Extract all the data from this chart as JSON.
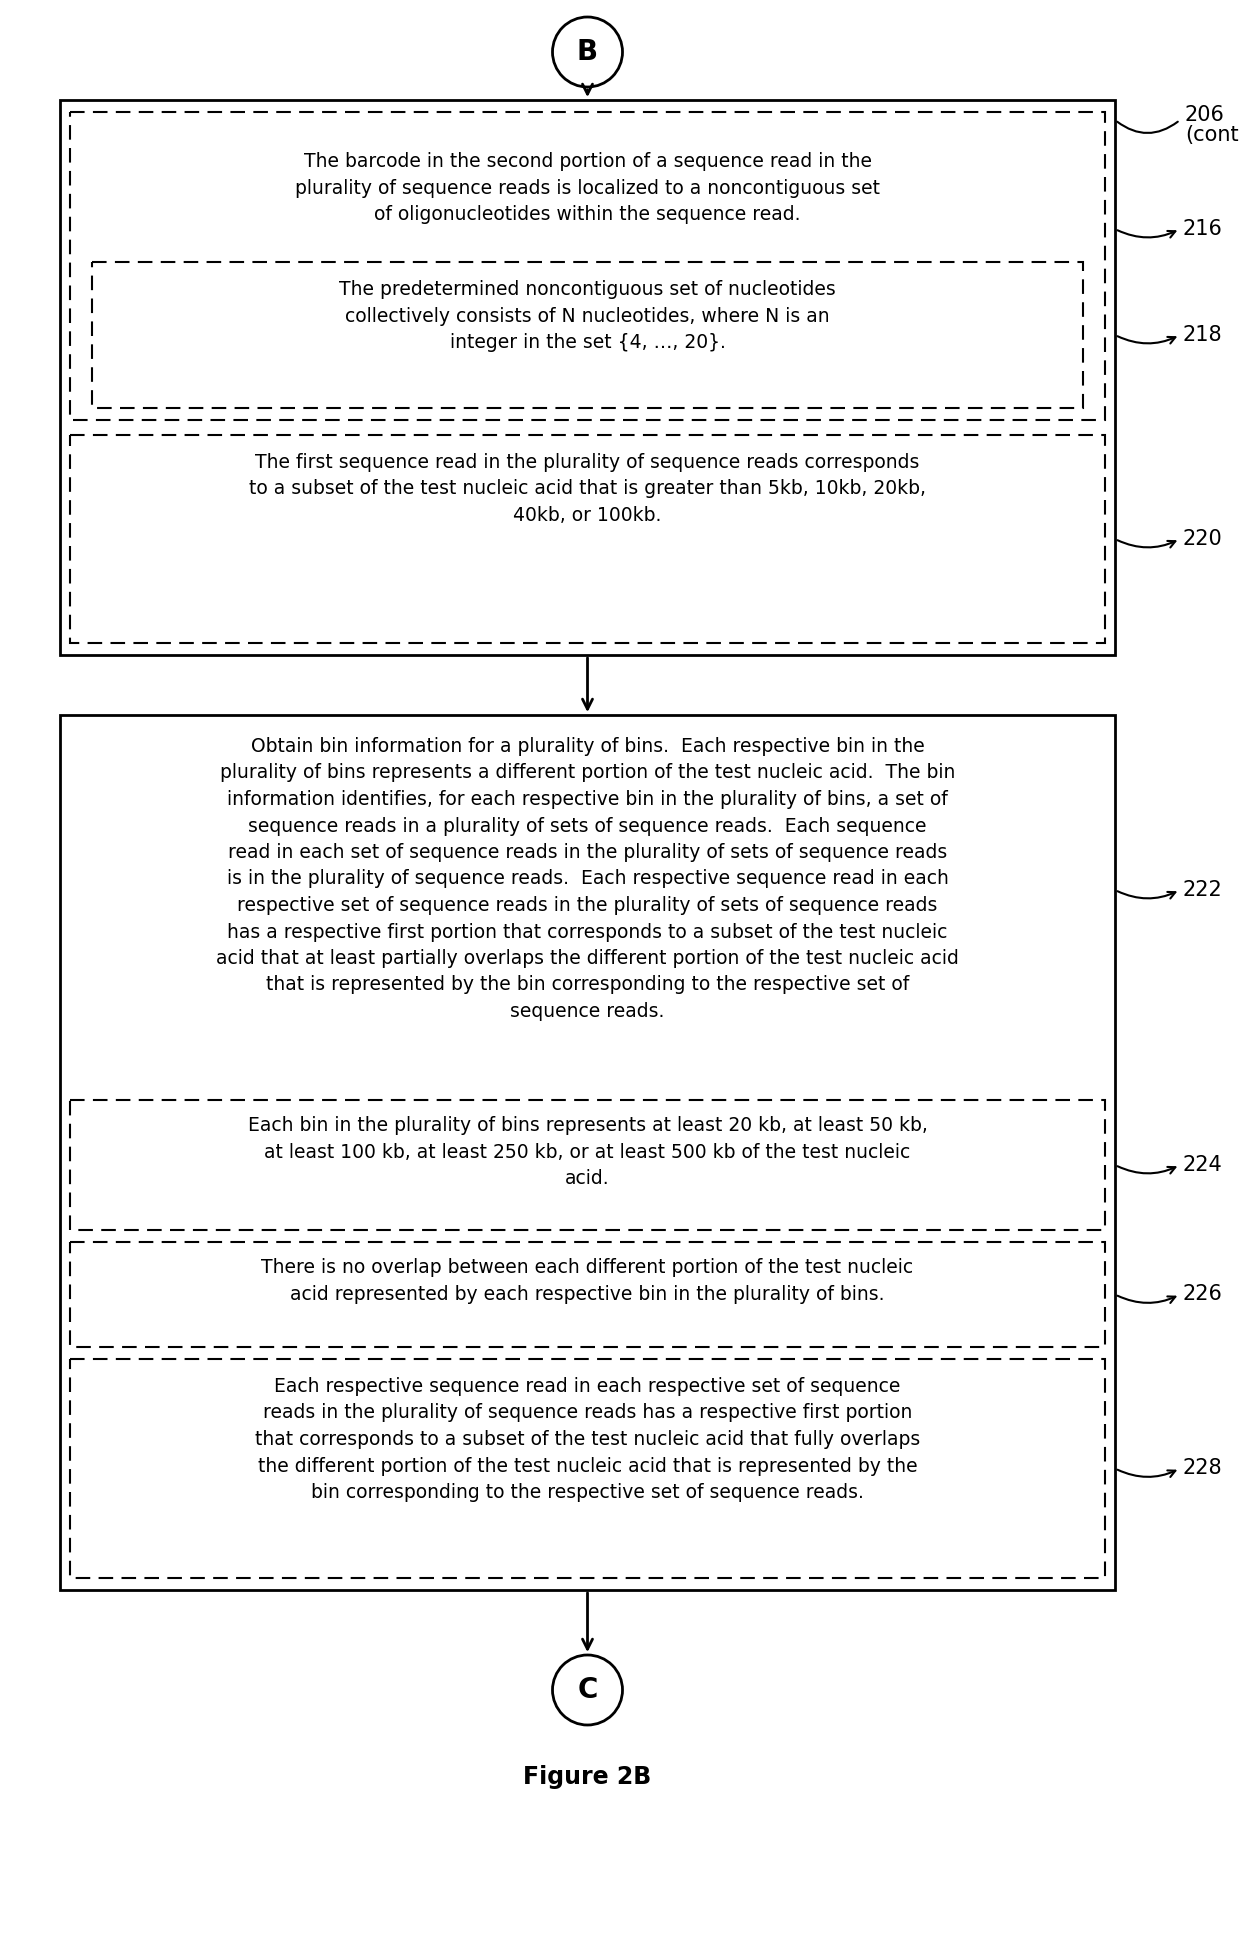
{
  "bg_color": "#ffffff",
  "fig_width": 12.4,
  "fig_height": 19.39,
  "title": "Figure 2B",
  "connector_top": "B",
  "connector_bottom": "C",
  "label_206": "206",
  "label_206b": "(cont)",
  "label_216": "216",
  "label_218": "218",
  "label_220": "220",
  "label_222": "222",
  "label_224": "224",
  "label_226": "226",
  "label_228": "228",
  "text_216": "The barcode in the second portion of a sequence read in the\nplurality of sequence reads is localized to a noncontiguous set\nof oligonucleotides within the sequence read.",
  "text_218": "The predetermined noncontiguous set of nucleotides\ncollectively consists of N nucleotides, where N is an\ninteger in the set {4, …, 20}.",
  "text_220": "The first sequence read in the plurality of sequence reads corresponds\nto a subset of the test nucleic acid that is greater than 5kb, 10kb, 20kb,\n40kb, or 100kb.",
  "text_222a": "Obtain bin information for a plurality of bins.  Each respective bin in the",
  "text_222b": "plurality of bins represents a different portion of the test nucleic acid.  The bin",
  "text_222c": "information identifies, for each respective bin in the plurality of bins, a set of",
  "text_222d": "sequence reads in a plurality of sets of sequence reads.  Each sequence",
  "text_222e": "read in each set of sequence reads in the plurality of sets of sequence reads",
  "text_222f": "is in the plurality of sequence reads.  Each respective sequence read in each",
  "text_222g": "respective set of sequence reads in the plurality of sets of sequence reads",
  "text_222h": "has a respective first portion that corresponds to a subset of the test nucleic",
  "text_222i": "acid that at least partially overlaps the different portion of the test nucleic acid",
  "text_222j": "that is represented by the bin corresponding to the respective set of",
  "text_222k": "sequence reads.",
  "text_224": "Each bin in the plurality of bins represents at least 20 kb, at least 50 kb,\nat least 100 kb, at least 250 kb, or at least 500 kb of the test nucleic\nacid.",
  "text_226": "There is no overlap between each different portion of the test nucleic\nacid represented by each respective bin in the plurality of bins.",
  "text_228": "Each respective sequence read in each respective set of sequence\nreads in the plurality of sequence reads has a respective first portion\nthat corresponds to a subset of the test nucleic acid that fully overlaps\nthe different portion of the test nucleic acid that is represented by the\nbin corresponding to the respective set of sequence reads."
}
